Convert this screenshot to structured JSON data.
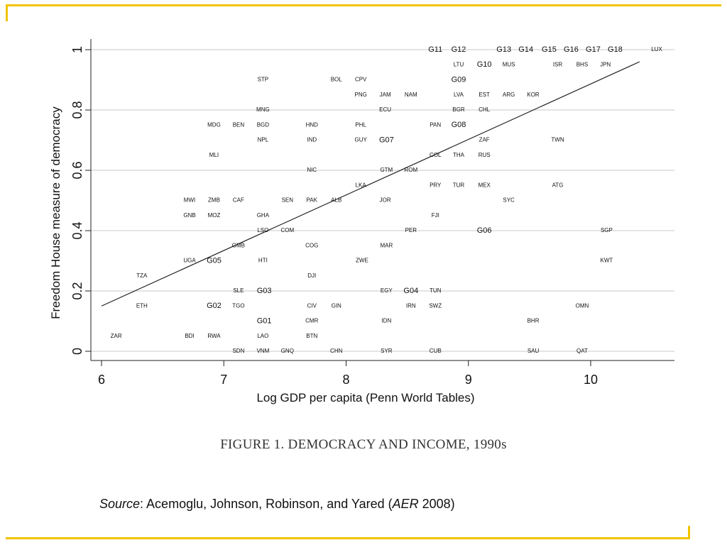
{
  "theme": {
    "accent": "#f2c400",
    "line": "#222222",
    "grid": "#c8c8c8"
  },
  "caption": {
    "text": "FIGURE 1. DEMOCRACY AND INCOME, 1990s"
  },
  "source": {
    "label": "Source",
    "authors": ": Acemoglu, Johnson, Robinson, and Yared (",
    "journal": "AER",
    "year": " 2008)"
  },
  "chart_data": {
    "type": "scatter",
    "title": "",
    "xlabel": "Log GDP per capita (Penn World Tables)",
    "ylabel": "Freedom House measure of democracy",
    "xlim": [
      5.9,
      10.7
    ],
    "ylim": [
      -0.03,
      1.03
    ],
    "xticks": [
      6,
      7,
      8,
      9,
      10
    ],
    "yticks": [
      0,
      0.2,
      0.4,
      0.6,
      0.8,
      1
    ],
    "ytick_labels": [
      "0",
      "0.2",
      "0.4",
      "0.6",
      "0.8",
      "1"
    ],
    "grid": "horizontal",
    "fit_line": {
      "x": [
        6.0,
        10.4
      ],
      "y": [
        0.15,
        0.96
      ]
    },
    "points": [
      {
        "label": "G11",
        "x": 8.73,
        "y": 1.0
      },
      {
        "label": "G12",
        "x": 8.92,
        "y": 1.0
      },
      {
        "label": "G13",
        "x": 9.29,
        "y": 1.0
      },
      {
        "label": "G14",
        "x": 9.47,
        "y": 1.0
      },
      {
        "label": "G15",
        "x": 9.66,
        "y": 1.0
      },
      {
        "label": "G16",
        "x": 9.84,
        "y": 1.0
      },
      {
        "label": "G17",
        "x": 10.02,
        "y": 1.0
      },
      {
        "label": "G18",
        "x": 10.2,
        "y": 1.0
      },
      {
        "label": "LUX",
        "x": 10.54,
        "y": 1.0
      },
      {
        "label": "LTU",
        "x": 8.92,
        "y": 0.95
      },
      {
        "label": "G10",
        "x": 9.13,
        "y": 0.95
      },
      {
        "label": "MUS",
        "x": 9.33,
        "y": 0.95
      },
      {
        "label": "ISR",
        "x": 9.73,
        "y": 0.95
      },
      {
        "label": "BHS",
        "x": 9.93,
        "y": 0.95
      },
      {
        "label": "JPN",
        "x": 10.12,
        "y": 0.95
      },
      {
        "label": "STP",
        "x": 7.32,
        "y": 0.9
      },
      {
        "label": "BOL",
        "x": 7.92,
        "y": 0.9
      },
      {
        "label": "CPV",
        "x": 8.12,
        "y": 0.9
      },
      {
        "label": "G09",
        "x": 8.92,
        "y": 0.9
      },
      {
        "label": "PNG",
        "x": 8.12,
        "y": 0.85
      },
      {
        "label": "JAM",
        "x": 8.32,
        "y": 0.85
      },
      {
        "label": "NAM",
        "x": 8.53,
        "y": 0.85
      },
      {
        "label": "LVA",
        "x": 8.92,
        "y": 0.85
      },
      {
        "label": "EST",
        "x": 9.13,
        "y": 0.85
      },
      {
        "label": "ARG",
        "x": 9.33,
        "y": 0.85
      },
      {
        "label": "KOR",
        "x": 9.53,
        "y": 0.85
      },
      {
        "label": "MNG",
        "x": 7.32,
        "y": 0.8
      },
      {
        "label": "ECU",
        "x": 8.32,
        "y": 0.8
      },
      {
        "label": "BGR",
        "x": 8.92,
        "y": 0.8
      },
      {
        "label": "CHL",
        "x": 9.13,
        "y": 0.8
      },
      {
        "label": "MDG",
        "x": 6.92,
        "y": 0.75
      },
      {
        "label": "BEN",
        "x": 7.12,
        "y": 0.75
      },
      {
        "label": "BGD",
        "x": 7.32,
        "y": 0.75
      },
      {
        "label": "HND",
        "x": 7.72,
        "y": 0.75
      },
      {
        "label": "PHL",
        "x": 8.12,
        "y": 0.75
      },
      {
        "label": "PAN",
        "x": 8.73,
        "y": 0.75
      },
      {
        "label": "G08",
        "x": 8.92,
        "y": 0.75
      },
      {
        "label": "NPL",
        "x": 7.32,
        "y": 0.7
      },
      {
        "label": "IND",
        "x": 7.72,
        "y": 0.7
      },
      {
        "label": "GUY",
        "x": 8.12,
        "y": 0.7
      },
      {
        "label": "G07",
        "x": 8.33,
        "y": 0.7
      },
      {
        "label": "ZAF",
        "x": 9.13,
        "y": 0.7
      },
      {
        "label": "TWN",
        "x": 9.73,
        "y": 0.7
      },
      {
        "label": "MLI",
        "x": 6.92,
        "y": 0.65
      },
      {
        "label": "COL",
        "x": 8.73,
        "y": 0.65
      },
      {
        "label": "THA",
        "x": 8.92,
        "y": 0.65
      },
      {
        "label": "RUS",
        "x": 9.13,
        "y": 0.65
      },
      {
        "label": "NIC",
        "x": 7.72,
        "y": 0.6
      },
      {
        "label": "GTM",
        "x": 8.33,
        "y": 0.6
      },
      {
        "label": "ROM",
        "x": 8.53,
        "y": 0.6
      },
      {
        "label": "LKA",
        "x": 8.12,
        "y": 0.55
      },
      {
        "label": "PRY",
        "x": 8.73,
        "y": 0.55
      },
      {
        "label": "TUR",
        "x": 8.92,
        "y": 0.55
      },
      {
        "label": "MEX",
        "x": 9.13,
        "y": 0.55
      },
      {
        "label": "ATG",
        "x": 9.73,
        "y": 0.55
      },
      {
        "label": "MWI",
        "x": 6.72,
        "y": 0.5
      },
      {
        "label": "ZMB",
        "x": 6.92,
        "y": 0.5
      },
      {
        "label": "CAF",
        "x": 7.12,
        "y": 0.5
      },
      {
        "label": "SEN",
        "x": 7.52,
        "y": 0.5
      },
      {
        "label": "PAK",
        "x": 7.72,
        "y": 0.5
      },
      {
        "label": "ALB",
        "x": 7.92,
        "y": 0.5
      },
      {
        "label": "JOR",
        "x": 8.32,
        "y": 0.5
      },
      {
        "label": "SYC",
        "x": 9.33,
        "y": 0.5
      },
      {
        "label": "GNB",
        "x": 6.72,
        "y": 0.45
      },
      {
        "label": "MOZ",
        "x": 6.92,
        "y": 0.45
      },
      {
        "label": "GHA",
        "x": 7.32,
        "y": 0.45
      },
      {
        "label": "FJI",
        "x": 8.73,
        "y": 0.45
      },
      {
        "label": "LSO",
        "x": 7.32,
        "y": 0.4
      },
      {
        "label": "COM",
        "x": 7.52,
        "y": 0.4
      },
      {
        "label": "PER",
        "x": 8.53,
        "y": 0.4
      },
      {
        "label": "G06",
        "x": 9.13,
        "y": 0.4
      },
      {
        "label": "SGP",
        "x": 10.13,
        "y": 0.4
      },
      {
        "label": "GMB",
        "x": 7.12,
        "y": 0.35
      },
      {
        "label": "COG",
        "x": 7.72,
        "y": 0.35
      },
      {
        "label": "MAR",
        "x": 8.33,
        "y": 0.35
      },
      {
        "label": "UGA",
        "x": 6.72,
        "y": 0.3
      },
      {
        "label": "G05",
        "x": 6.92,
        "y": 0.3
      },
      {
        "label": "HTI",
        "x": 7.32,
        "y": 0.3
      },
      {
        "label": "ZWE",
        "x": 8.13,
        "y": 0.3
      },
      {
        "label": "KWT",
        "x": 10.13,
        "y": 0.3
      },
      {
        "label": "TZA",
        "x": 6.33,
        "y": 0.25
      },
      {
        "label": "DJI",
        "x": 7.72,
        "y": 0.25
      },
      {
        "label": "SLE",
        "x": 7.12,
        "y": 0.2
      },
      {
        "label": "G03",
        "x": 7.33,
        "y": 0.2
      },
      {
        "label": "EGY",
        "x": 8.33,
        "y": 0.2
      },
      {
        "label": "G04",
        "x": 8.53,
        "y": 0.2
      },
      {
        "label": "TUN",
        "x": 8.73,
        "y": 0.2
      },
      {
        "label": "ETH",
        "x": 6.33,
        "y": 0.15
      },
      {
        "label": "G02",
        "x": 6.92,
        "y": 0.15
      },
      {
        "label": "TGO",
        "x": 7.12,
        "y": 0.15
      },
      {
        "label": "CIV",
        "x": 7.72,
        "y": 0.15
      },
      {
        "label": "GIN",
        "x": 7.92,
        "y": 0.15
      },
      {
        "label": "IRN",
        "x": 8.53,
        "y": 0.15
      },
      {
        "label": "SWZ",
        "x": 8.73,
        "y": 0.15
      },
      {
        "label": "OMN",
        "x": 9.93,
        "y": 0.15
      },
      {
        "label": "G01",
        "x": 7.33,
        "y": 0.1
      },
      {
        "label": "CMR",
        "x": 7.72,
        "y": 0.1
      },
      {
        "label": "IDN",
        "x": 8.33,
        "y": 0.1
      },
      {
        "label": "BHR",
        "x": 9.53,
        "y": 0.1
      },
      {
        "label": "ZAR",
        "x": 6.12,
        "y": 0.05
      },
      {
        "label": "BDI",
        "x": 6.72,
        "y": 0.05
      },
      {
        "label": "RWA",
        "x": 6.92,
        "y": 0.05
      },
      {
        "label": "LAO",
        "x": 7.32,
        "y": 0.05
      },
      {
        "label": "BTN",
        "x": 7.72,
        "y": 0.05
      },
      {
        "label": "SDN",
        "x": 7.12,
        "y": 0.0
      },
      {
        "label": "VNM",
        "x": 7.32,
        "y": 0.0
      },
      {
        "label": "GNQ",
        "x": 7.52,
        "y": 0.0
      },
      {
        "label": "CHN",
        "x": 7.92,
        "y": 0.0
      },
      {
        "label": "SYR",
        "x": 8.33,
        "y": 0.0
      },
      {
        "label": "CUB",
        "x": 8.73,
        "y": 0.0
      },
      {
        "label": "SAU",
        "x": 9.53,
        "y": 0.0
      },
      {
        "label": "QAT",
        "x": 9.93,
        "y": 0.0
      }
    ]
  }
}
